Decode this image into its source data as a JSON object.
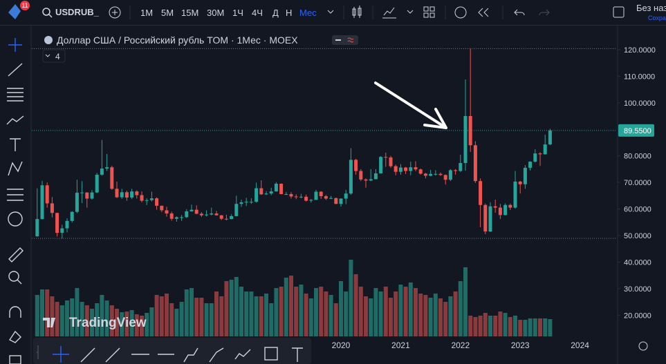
{
  "toolbar": {
    "badge": "11",
    "symbol": "USDRUB_",
    "timeframes": [
      "1М",
      "5М",
      "15М",
      "30М",
      "1Ч",
      "4Ч",
      "Д",
      "Н",
      "Мес"
    ],
    "layout_name": "Без наз",
    "save": "Сохра"
  },
  "chart_data": {
    "type": "candlestick",
    "title": "Доллар США / Российский рубль TOM · 1Мес · MOEX",
    "indicator_count": "4",
    "watermark": "TradingView",
    "up_color": "#26a69a",
    "down_color": "#ef5350",
    "volume_up_color": "#1f6b66",
    "volume_down_color": "#8b3a3d",
    "ylim": [
      12,
      128.3
    ],
    "yticks": [
      {
        "value": 120,
        "label": "120.0000"
      },
      {
        "value": 110,
        "label": "110.0000"
      },
      {
        "value": 100,
        "label": "100.0000"
      },
      {
        "value": 90,
        "label": "90.0000"
      },
      {
        "value": 80,
        "label": "80.0000"
      },
      {
        "value": 70,
        "label": "70.0000"
      },
      {
        "value": 60,
        "label": "60.0000"
      },
      {
        "value": 50,
        "label": "50.0000"
      },
      {
        "value": 40,
        "label": "40.0000"
      },
      {
        "value": 30,
        "label": "30.0000"
      },
      {
        "value": 20,
        "label": "20.0000"
      }
    ],
    "x_labels": [
      "2020",
      "2021",
      "2022",
      "2023",
      "2024"
    ],
    "last_price": {
      "value": 89.55,
      "label": "89.5500"
    },
    "ohlc": [
      [
        49.7,
        67.8,
        49.5,
        56.2
      ],
      [
        56.2,
        70.6,
        56,
        68.9
      ],
      [
        68.9,
        70,
        60.5,
        62.1
      ],
      [
        62.1,
        64.5,
        56.8,
        58.5
      ],
      [
        58.5,
        58.6,
        49.6,
        51
      ],
      [
        51,
        54.1,
        48.9,
        52.7
      ],
      [
        52.7,
        56.5,
        51.2,
        55.5
      ],
      [
        55.5,
        59.2,
        54.9,
        58.9
      ],
      [
        58.9,
        71,
        58.4,
        66.1
      ],
      [
        66.1,
        70.5,
        62.2,
        66.2
      ],
      [
        66.2,
        66.3,
        60.5,
        63.9
      ],
      [
        63.9,
        67.1,
        63.5,
        66.2
      ],
      [
        66.2,
        73.6,
        66,
        72.9
      ],
      [
        72.9,
        86,
        72.5,
        75.2
      ],
      [
        75.2,
        80.7,
        74.3,
        75.7
      ],
      [
        75.7,
        76.3,
        67.2,
        67.6
      ],
      [
        67.6,
        70.3,
        64.1,
        64.4
      ],
      [
        64.4,
        67.6,
        63.8,
        66.3
      ],
      [
        66.3,
        66.9,
        63.1,
        64.3
      ],
      [
        64.3,
        67.6,
        63.7,
        66.6
      ],
      [
        66.6,
        67,
        63.9,
        65.2
      ],
      [
        65.2,
        66.6,
        62.5,
        63.1
      ],
      [
        63.1,
        64,
        61.5,
        63.3
      ],
      [
        63.3,
        66.5,
        62.8,
        64
      ],
      [
        64,
        64.4,
        59.7,
        61.2
      ],
      [
        61.2,
        61.3,
        58.8,
        59.5
      ],
      [
        59.5,
        60.8,
        57.1,
        58.3
      ],
      [
        58.3,
        59,
        55.6,
        56.3
      ],
      [
        56.3,
        57.2,
        55.2,
        56.9
      ],
      [
        56.9,
        57.7,
        55.5,
        56.9
      ],
      [
        56.9,
        59.9,
        56.6,
        59.1
      ],
      [
        59.1,
        61.6,
        58.9,
        59.7
      ],
      [
        59.7,
        61.3,
        58,
        58.2
      ],
      [
        58.2,
        58.8,
        57,
        57.6
      ],
      [
        57.6,
        59.5,
        57.2,
        57.9
      ],
      [
        57.9,
        60.5,
        57.6,
        58.3
      ],
      [
        58.3,
        59.3,
        57.5,
        57.6
      ],
      [
        57.6,
        57.7,
        55.8,
        56.3
      ],
      [
        56.3,
        57.8,
        55.7,
        56.2
      ],
      [
        56.2,
        58,
        56.1,
        57.3
      ],
      [
        57.3,
        65,
        57.2,
        61.9
      ],
      [
        61.9,
        63.5,
        60.8,
        62.5
      ],
      [
        62.5,
        64.2,
        61.1,
        62.7
      ],
      [
        62.7,
        64,
        61.9,
        62.7
      ],
      [
        62.7,
        69.9,
        62.4,
        67.8
      ],
      [
        67.8,
        70.8,
        65.3,
        65.5
      ],
      [
        65.5,
        66.7,
        65.2,
        65.8
      ],
      [
        65.8,
        68,
        65.2,
        66.6
      ],
      [
        66.6,
        70.1,
        66.5,
        69.5
      ],
      [
        69.5,
        69.6,
        65.5,
        65.6
      ],
      [
        65.6,
        66.4,
        65.2,
        65.6
      ],
      [
        65.6,
        66.3,
        63.9,
        64.7
      ],
      [
        64.7,
        65.5,
        63.7,
        64.5
      ],
      [
        64.5,
        65.7,
        64,
        64.6
      ],
      [
        64.6,
        65.4,
        62.8,
        63.1
      ],
      [
        63.1,
        63.8,
        62.4,
        63.4
      ],
      [
        63.4,
        67.2,
        63.4,
        66.5
      ],
      [
        66.5,
        66.7,
        63.8,
        64.8
      ],
      [
        64.8,
        65.3,
        63.4,
        63.9
      ],
      [
        63.9,
        64.9,
        63.7,
        64.1
      ],
      [
        64.1,
        64.3,
        61.8,
        61.9
      ],
      [
        61.9,
        64,
        60.9,
        63.9
      ],
      [
        63.9,
        67.2,
        61.8,
        65.8
      ],
      [
        65.8,
        82.9,
        65.3,
        78.5
      ],
      [
        78.5,
        78.9,
        72.9,
        74.3
      ],
      [
        74.3,
        75,
        70.5,
        71.1
      ],
      [
        71.1,
        71.5,
        68,
        70.7
      ],
      [
        70.7,
        75,
        70.5,
        71.2
      ],
      [
        71.2,
        75,
        71.2,
        73.4
      ],
      [
        73.4,
        79.9,
        73.4,
        79.6
      ],
      [
        79.6,
        81.2,
        75.9,
        79.4
      ],
      [
        79.4,
        80,
        75.5,
        76.1
      ],
      [
        76.1,
        76.7,
        72.7,
        74
      ],
      [
        74,
        76.9,
        72.9,
        75.6
      ],
      [
        75.6,
        75.8,
        73.1,
        74.3
      ],
      [
        74.3,
        77.8,
        72.7,
        75.7
      ],
      [
        75.7,
        78,
        74.2,
        74.9
      ],
      [
        74.9,
        75.2,
        72.9,
        73.3
      ],
      [
        73.3,
        73.6,
        71.5,
        72.5
      ],
      [
        72.5,
        74.7,
        72.3,
        73.2
      ],
      [
        73.2,
        74.6,
        72.6,
        73.2
      ],
      [
        73.2,
        73.7,
        72.5,
        72.8
      ],
      [
        72.8,
        73,
        69.2,
        71
      ],
      [
        71,
        75,
        70.5,
        74.6
      ],
      [
        74.6,
        75,
        72.9,
        74.3
      ],
      [
        74.3,
        80.4,
        73.9,
        77.3
      ],
      [
        77.3,
        108.8,
        74.4,
        95
      ],
      [
        95,
        120.4,
        81.5,
        84
      ],
      [
        84,
        85.5,
        69.8,
        70.5
      ],
      [
        70.5,
        71.5,
        53.1,
        61.5
      ],
      [
        61.5,
        62,
        50.5,
        51.5
      ],
      [
        51.5,
        62.5,
        51.3,
        61
      ],
      [
        61,
        63.5,
        58.6,
        60.5
      ],
      [
        60.5,
        61.9,
        56.2,
        57.7
      ],
      [
        57.7,
        62.1,
        57.5,
        61.5
      ],
      [
        61.5,
        62,
        59.6,
        60.5
      ],
      [
        60.5,
        74.3,
        60.1,
        70.3
      ],
      [
        70.3,
        70.6,
        65.8,
        69.3
      ],
      [
        69.3,
        76.5,
        67.6,
        75.5
      ],
      [
        75.5,
        78,
        74.5,
        77.8
      ],
      [
        77.8,
        82.5,
        77.5,
        80.9
      ],
      [
        80.9,
        81.4,
        76.2,
        80.6
      ],
      [
        80.6,
        88,
        80.4,
        84.3
      ],
      [
        84.3,
        90.2,
        84,
        89.55
      ]
    ],
    "volume": [
      60,
      68,
      68,
      58,
      50,
      45,
      52,
      55,
      70,
      50,
      45,
      40,
      48,
      60,
      52,
      45,
      40,
      35,
      36,
      38,
      32,
      30,
      34,
      42,
      60,
      58,
      62,
      48,
      40,
      50,
      68,
      70,
      56,
      56,
      48,
      48,
      65,
      58,
      80,
      82,
      86,
      72,
      65,
      65,
      58,
      58,
      62,
      48,
      70,
      72,
      85,
      88,
      72,
      75,
      62,
      55,
      70,
      72,
      65,
      60,
      48,
      80,
      65,
      111,
      90,
      72,
      58,
      55,
      70,
      65,
      72,
      56,
      65,
      75,
      72,
      78,
      70,
      62,
      60,
      56,
      62,
      55,
      50,
      58,
      65,
      80,
      100,
      30,
      28,
      30,
      34,
      30,
      30,
      36,
      34,
      28,
      30,
      24,
      24,
      26,
      26,
      26,
      26,
      25
    ]
  }
}
